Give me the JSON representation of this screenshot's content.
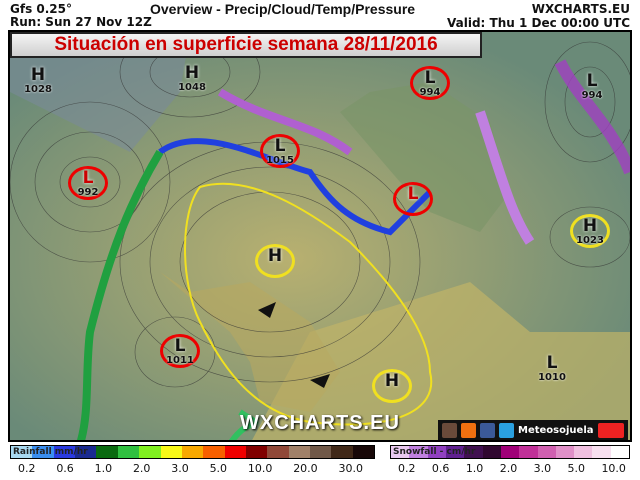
{
  "header": {
    "model": "Gfs 0.25°",
    "run": "Run: Sun 27 Nov 12Z",
    "title": "Overview - Precip/Cloud/Temp/Pressure",
    "site": "WXCHARTS.EU",
    "valid": "Valid: Thu 1 Dec 00:00 UTC"
  },
  "banner": "Situación en superficie semana 28/11/2016",
  "watermark": "WXCHARTS.EU",
  "social": {
    "name": "Meteosojuela",
    "icons": [
      "instagram-icon",
      "blogger-icon",
      "facebook-icon",
      "twitter-icon",
      "youtube-icon"
    ]
  },
  "systems": [
    {
      "type": "H",
      "value": "1028"
    },
    {
      "type": "H",
      "value": "1048"
    },
    {
      "type": "L",
      "value": "994"
    },
    {
      "type": "L",
      "value": "994"
    },
    {
      "type": "L",
      "value": "992"
    },
    {
      "type": "L",
      "value": "1015"
    },
    {
      "type": "H",
      "value": ""
    },
    {
      "type": "H",
      "value": "1023"
    },
    {
      "type": "L",
      "value": "1011"
    },
    {
      "type": "L",
      "value": "1010"
    },
    {
      "type": "H",
      "value": ""
    },
    {
      "type": "L",
      "value": ""
    }
  ],
  "rainfall": {
    "label": "Rainfall mm/hr",
    "ticks": [
      "0.2",
      "0.6",
      "1.0",
      "2.0",
      "3.0",
      "5.0",
      "10.0",
      "20.0",
      "30.0"
    ],
    "colors": [
      "#a8d8f0",
      "#3a8ef0",
      "#2a3ae0",
      "#1a2a90",
      "#0a6a10",
      "#30c040",
      "#80f020",
      "#f8f818",
      "#f8a800",
      "#f86000",
      "#f00000",
      "#800000",
      "#904838",
      "#a08068",
      "#705848",
      "#402818",
      "#180808"
    ]
  },
  "snowfall": {
    "label": "Snowfall - cm/hr",
    "ticks": [
      "0.2",
      "0.6",
      "1.0",
      "2.0",
      "3.0",
      "5.0",
      "10.0"
    ],
    "colors": [
      "#e8c8f0",
      "#c080e0",
      "#9040c0",
      "#602090",
      "#401050",
      "#300830",
      "#a00078",
      "#c03098",
      "#d060b0",
      "#e090c8",
      "#f0c0e0",
      "#f8e0f0",
      "#ffffff"
    ]
  }
}
